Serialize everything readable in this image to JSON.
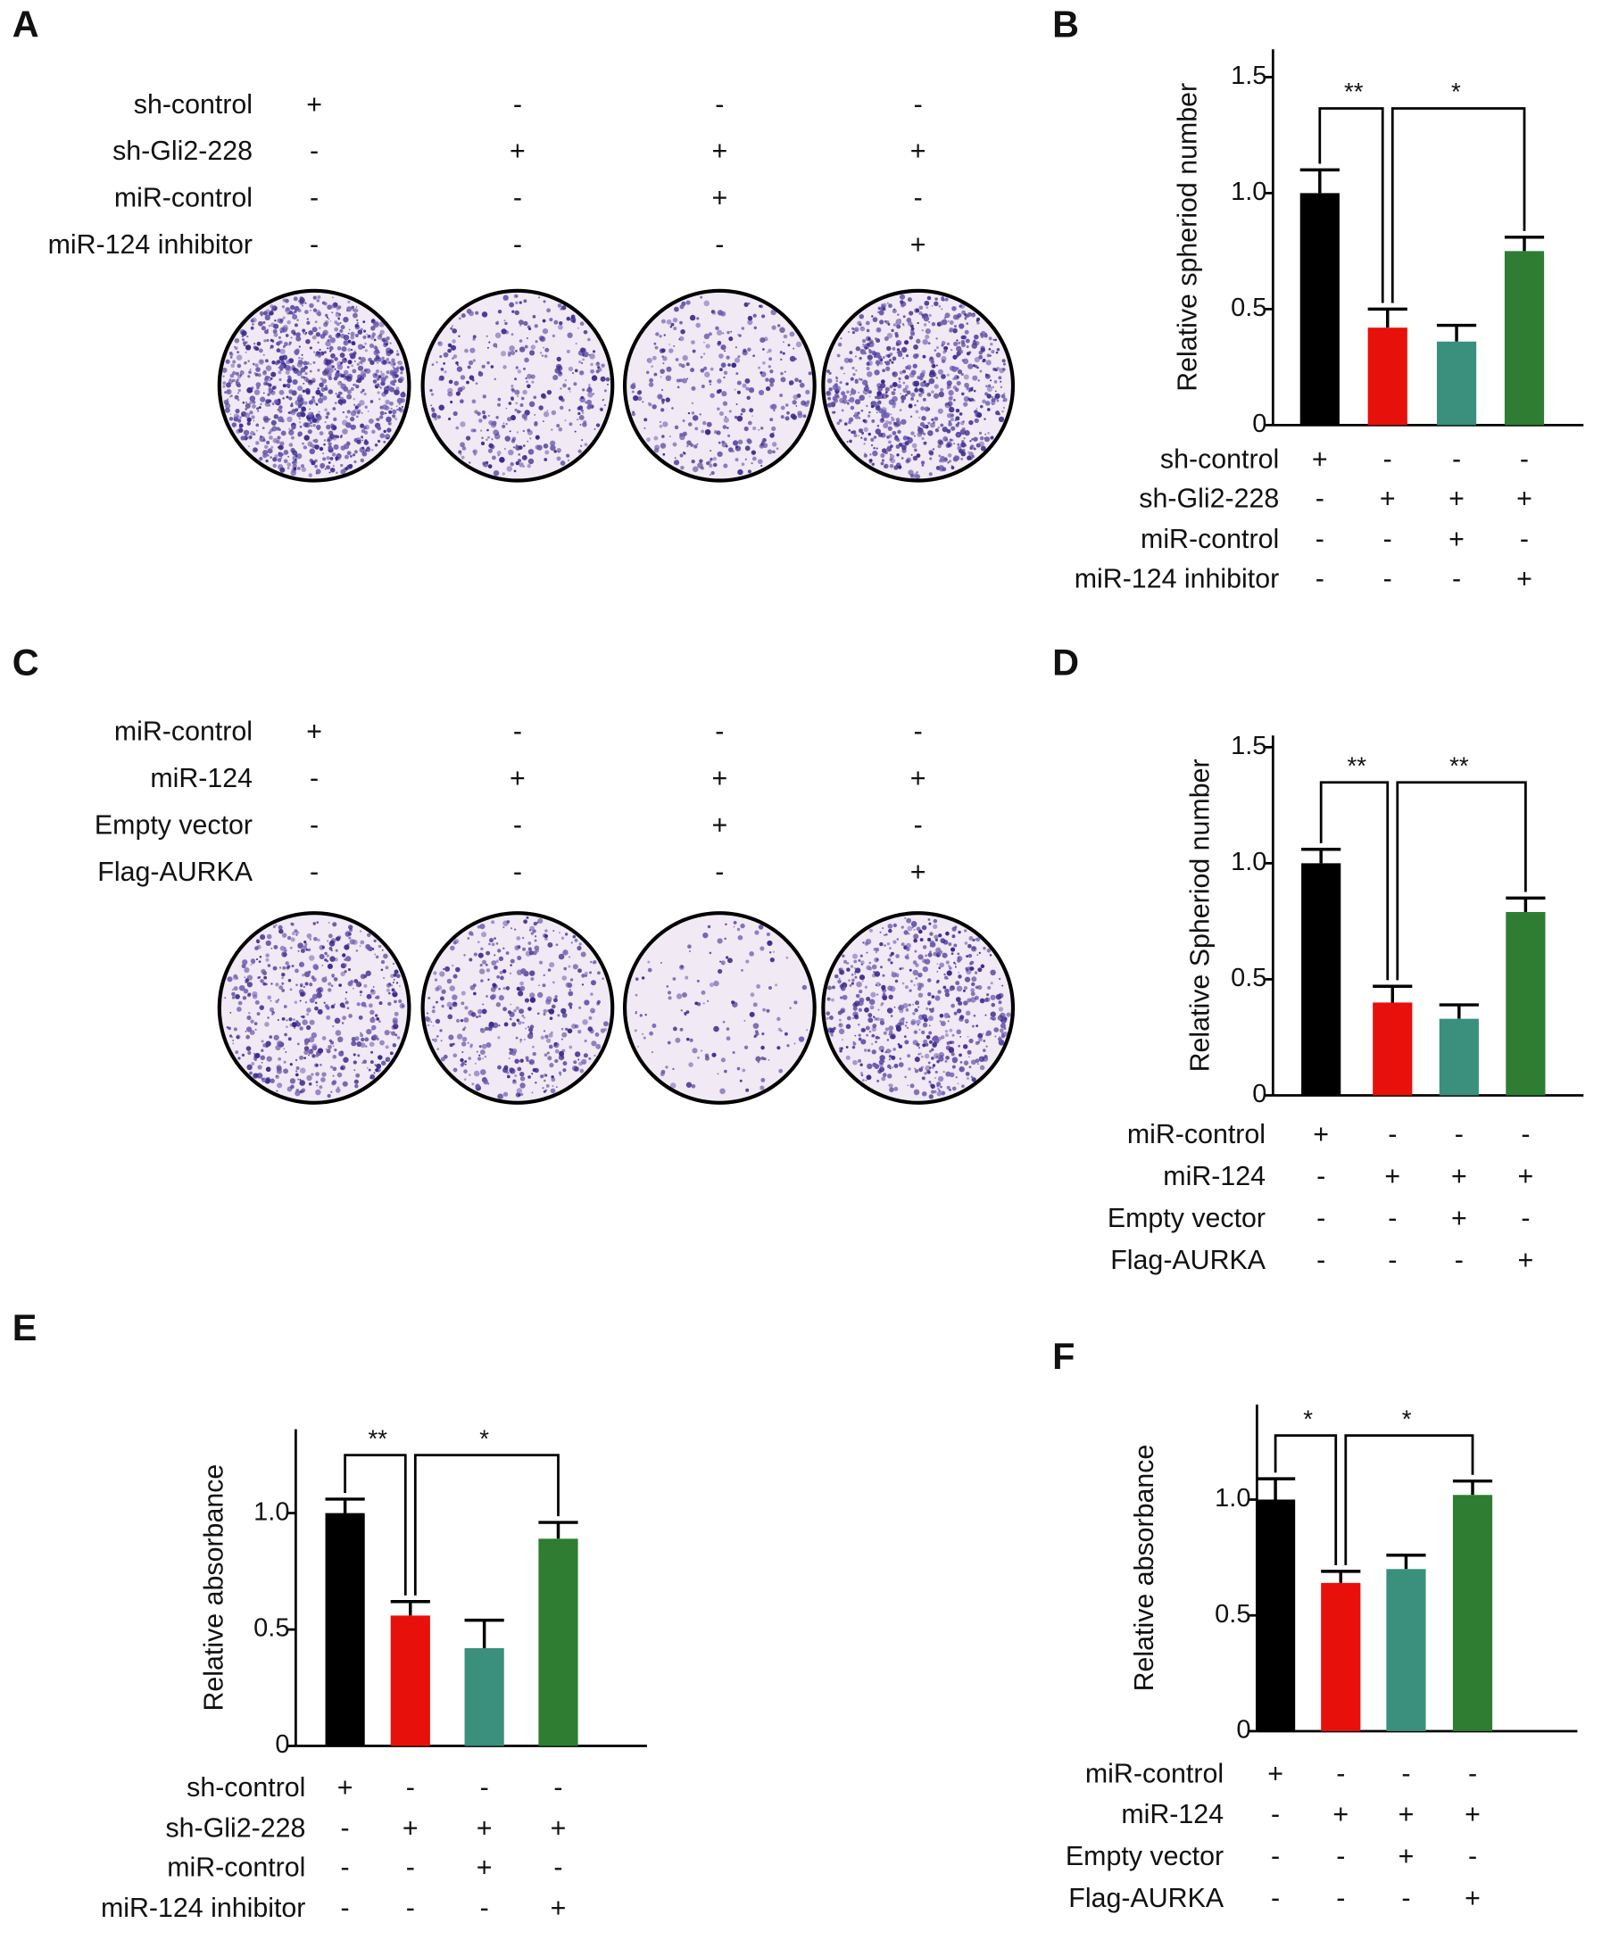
{
  "plate_panels": [
    {
      "label": "A",
      "conditions": [
        {
          "name": "sh-control",
          "signs": [
            "+",
            "-",
            "-",
            "-"
          ]
        },
        {
          "name": "sh-Gli2-228",
          "signs": [
            "-",
            "+",
            "+",
            "+"
          ]
        },
        {
          "name": "miR-control",
          "signs": [
            "-",
            "-",
            "+",
            "-"
          ]
        },
        {
          "name": "miR-124 inhibitor",
          "signs": [
            "-",
            "-",
            "-",
            "+"
          ]
        }
      ]
    },
    {
      "label": "C",
      "conditions": [
        {
          "name": "miR-control",
          "signs": [
            "+",
            "-",
            "-",
            "-"
          ]
        },
        {
          "name": "miR-124",
          "signs": [
            "-",
            "+",
            "+",
            "+"
          ]
        },
        {
          "name": "Empty vector",
          "signs": [
            "-",
            "-",
            "+",
            "-"
          ]
        },
        {
          "name": "Flag-AURKA",
          "signs": [
            "-",
            "-",
            "-",
            "+"
          ]
        }
      ]
    }
  ],
  "chart_data": [
    {
      "type": "bar",
      "panel_label": "B",
      "ylabel": "Relative spheriod number",
      "values": [
        1.0,
        0.42,
        0.36,
        0.75
      ],
      "errors": [
        0.1,
        0.08,
        0.07,
        0.06
      ],
      "colors": [
        "#000000",
        "#e8100a",
        "#3a8f7d",
        "#2e7d32"
      ],
      "ylim": [
        0,
        1.62
      ],
      "yticks": [
        0,
        0.5,
        {
          "value": 1,
          "label": "1.0"
        },
        1.5
      ],
      "significance": [
        {
          "from": 0,
          "to": 1,
          "label": "**"
        },
        {
          "from": 1,
          "to": 3,
          "label": "*"
        }
      ],
      "conditions": [
        {
          "name": "sh-control",
          "signs": [
            "+",
            "-",
            "-",
            "-"
          ]
        },
        {
          "name": "sh-Gli2-228",
          "signs": [
            "-",
            "+",
            "+",
            "+"
          ]
        },
        {
          "name": "miR-control",
          "signs": [
            "-",
            "-",
            "+",
            "-"
          ]
        },
        {
          "name": "miR-124 inhibitor",
          "signs": [
            "-",
            "-",
            "-",
            "+"
          ]
        }
      ]
    },
    {
      "type": "bar",
      "panel_label": "D",
      "ylabel": "Relative Spheriod number",
      "values": [
        1.0,
        0.4,
        0.33,
        0.79
      ],
      "errors": [
        0.06,
        0.07,
        0.06,
        0.06
      ],
      "colors": [
        "#000000",
        "#e8100a",
        "#3a8f7d",
        "#2e7d32"
      ],
      "ylim": [
        0,
        1.55
      ],
      "yticks": [
        0,
        0.5,
        {
          "value": 1,
          "label": "1.0"
        },
        1.5
      ],
      "significance": [
        {
          "from": 0,
          "to": 1,
          "label": "**"
        },
        {
          "from": 1,
          "to": 3,
          "label": "**"
        }
      ],
      "conditions": [
        {
          "name": "miR-control",
          "signs": [
            "+",
            "-",
            "-",
            "-"
          ]
        },
        {
          "name": "miR-124",
          "signs": [
            "-",
            "+",
            "+",
            "+"
          ]
        },
        {
          "name": "Empty vector",
          "signs": [
            "-",
            "-",
            "+",
            "-"
          ]
        },
        {
          "name": "Flag-AURKA",
          "signs": [
            "-",
            "-",
            "-",
            "+"
          ]
        }
      ]
    },
    {
      "type": "bar",
      "panel_label": "E",
      "ylabel": "Relative absorbance",
      "values": [
        1.0,
        0.56,
        0.42,
        0.89
      ],
      "errors": [
        0.06,
        0.06,
        0.12,
        0.07
      ],
      "colors": [
        "#000000",
        "#e8100a",
        "#3a8f7d",
        "#2e7d32"
      ],
      "ylim": [
        0,
        1.36
      ],
      "yticks": [
        0,
        0.5,
        {
          "value": 1,
          "label": "1.0"
        }
      ],
      "significance": [
        {
          "from": 0,
          "to": 1,
          "label": "**"
        },
        {
          "from": 1,
          "to": 3,
          "label": "*"
        }
      ],
      "conditions": [
        {
          "name": "sh-control",
          "signs": [
            "+",
            "-",
            "-",
            "-"
          ]
        },
        {
          "name": "sh-Gli2-228",
          "signs": [
            "-",
            "+",
            "+",
            "+"
          ]
        },
        {
          "name": "miR-control",
          "signs": [
            "-",
            "-",
            "+",
            "-"
          ]
        },
        {
          "name": "miR-124 inhibitor",
          "signs": [
            "-",
            "-",
            "-",
            "+"
          ]
        }
      ]
    },
    {
      "type": "bar",
      "panel_label": "F",
      "ylabel": "Relative absorbance",
      "values": [
        1.0,
        0.64,
        0.7,
        1.02
      ],
      "errors": [
        0.09,
        0.05,
        0.06,
        0.06
      ],
      "colors": [
        "#000000",
        "#e8100a",
        "#3a8f7d",
        "#2e7d32"
      ],
      "ylim": [
        0,
        1.41
      ],
      "yticks": [
        0,
        0.5,
        {
          "value": 1,
          "label": "1.0"
        }
      ],
      "significance": [
        {
          "from": 0,
          "to": 1,
          "label": "*"
        },
        {
          "from": 1,
          "to": 3,
          "label": "*"
        }
      ],
      "conditions": [
        {
          "name": "miR-control",
          "signs": [
            "+",
            "-",
            "-",
            "-"
          ]
        },
        {
          "name": "miR-124",
          "signs": [
            "-",
            "+",
            "+",
            "+"
          ]
        },
        {
          "name": "Empty vector",
          "signs": [
            "-",
            "-",
            "+",
            "-"
          ]
        },
        {
          "name": "Flag-AURKA",
          "signs": [
            "-",
            "-",
            "-",
            "+"
          ]
        }
      ]
    }
  ]
}
